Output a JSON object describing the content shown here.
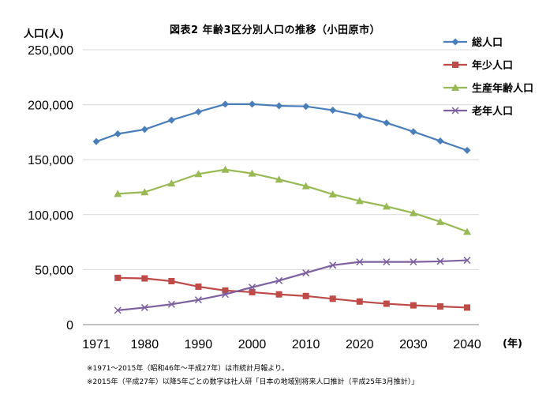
{
  "chart_data": {
    "type": "line",
    "title": "図表2 年齢3区分別人口の推移（小田原市）",
    "ylabel": "人口(人)",
    "xlabel": "(年)",
    "x": [
      1971,
      1975,
      1980,
      1985,
      1990,
      1995,
      2000,
      2005,
      2010,
      2015,
      2020,
      2025,
      2030,
      2035,
      2040
    ],
    "x_ticks": [
      1971,
      1980,
      1990,
      2000,
      2010,
      2020,
      2030,
      2040
    ],
    "ylim": [
      0,
      250000
    ],
    "y_ticks": [
      "0",
      "50,000",
      "100,000",
      "150,000",
      "200,000",
      "250,000"
    ],
    "y_tick_values": [
      0,
      50000,
      100000,
      150000,
      200000,
      250000
    ],
    "grid": "horizontal",
    "legend_position": "top-right",
    "series": [
      {
        "name": "総人口",
        "color": "#4a7ebb",
        "marker": "diamond",
        "values": [
          166500,
          173500,
          177500,
          186000,
          193500,
          200500,
          200500,
          199000,
          198500,
          195000,
          190000,
          183500,
          175500,
          167000,
          158500
        ]
      },
      {
        "name": "年少人口",
        "color": "#be4b48",
        "marker": "square",
        "values": [
          null,
          42500,
          42000,
          39500,
          34500,
          31000,
          29500,
          27500,
          26000,
          23500,
          21000,
          19000,
          17500,
          16500,
          15500
        ]
      },
      {
        "name": "生産年齢人口",
        "color": "#98b954",
        "marker": "triangle",
        "values": [
          null,
          119000,
          120500,
          128500,
          137000,
          141000,
          137500,
          132000,
          126000,
          118500,
          112500,
          107500,
          101500,
          93500,
          84500
        ]
      },
      {
        "name": "老年人口",
        "color": "#7d60a0",
        "marker": "x",
        "values": [
          null,
          13000,
          15500,
          18500,
          22500,
          27500,
          34000,
          40000,
          47000,
          54000,
          57000,
          57000,
          57000,
          57500,
          58500
        ]
      }
    ]
  },
  "notes": [
    "※1971～2015年（昭和46年～平成27年）は市統計月報より。",
    "※2015年（平成27年）以降5年ごとの数字は社人研「日本の地域別将来人口推計（平成25年3月推計）」"
  ]
}
